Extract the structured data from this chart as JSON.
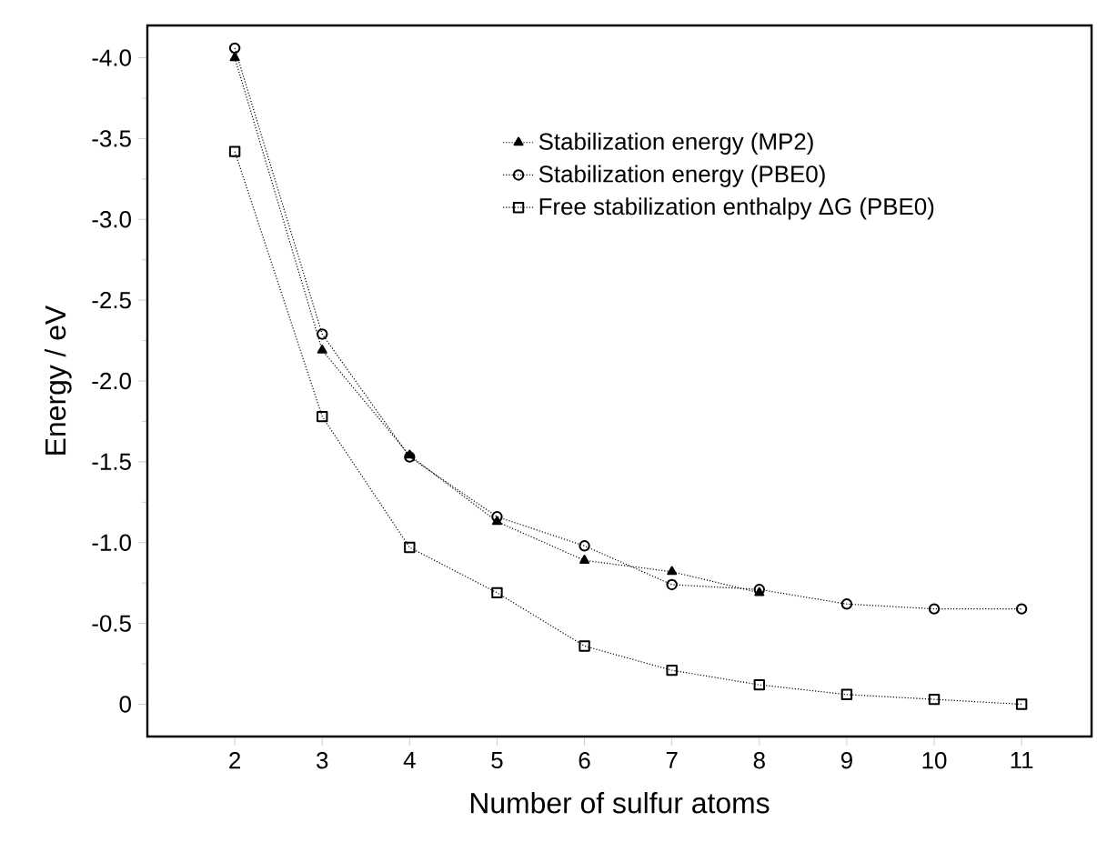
{
  "chart_data": {
    "type": "line",
    "xlabel": "Number of sulfur atoms",
    "ylabel": "Energy / eV",
    "x": [
      2,
      3,
      4,
      5,
      6,
      7,
      8,
      9,
      10,
      11
    ],
    "xlim": [
      1,
      11.8
    ],
    "xticks": [
      2,
      3,
      4,
      5,
      6,
      7,
      8,
      9,
      10,
      11
    ],
    "ylim": [
      0.2,
      -4.2
    ],
    "yticks": [
      {
        "value": 0,
        "label": "0"
      },
      {
        "value": -0.5,
        "label": "-0.5"
      },
      {
        "value": -1.0,
        "label": "-1.0"
      },
      {
        "value": -1.5,
        "label": "-1.5"
      },
      {
        "value": -2.0,
        "label": "-2.0"
      },
      {
        "value": -2.5,
        "label": "-2.5"
      },
      {
        "value": -3.0,
        "label": "-3.0"
      },
      {
        "value": -3.5,
        "label": "-3.5"
      },
      {
        "value": -4.0,
        "label": "-4.0"
      }
    ],
    "grid": false,
    "legend": "top right",
    "line_style": "dotted",
    "series": [
      {
        "name": "Stabilization energy (MP2)",
        "color": "#000000",
        "marker": "triangle",
        "values": [
          -4.0,
          -2.19,
          -1.54,
          -1.13,
          -0.89,
          -0.82,
          -0.69,
          null,
          null,
          null
        ]
      },
      {
        "name": "Stabilization energy (PBE0)",
        "color": "#000000",
        "marker": "circle",
        "values": [
          -4.06,
          -2.29,
          -1.53,
          -1.16,
          -0.98,
          -0.74,
          -0.71,
          -0.62,
          -0.59,
          -0.59
        ]
      },
      {
        "name": "Free stabilization enthalpy ΔG (PBE0)",
        "color": "#000000",
        "marker": "square",
        "values": [
          -3.42,
          -1.78,
          -0.97,
          -0.69,
          -0.36,
          -0.21,
          -0.12,
          -0.06,
          -0.03,
          0.0
        ]
      }
    ]
  }
}
